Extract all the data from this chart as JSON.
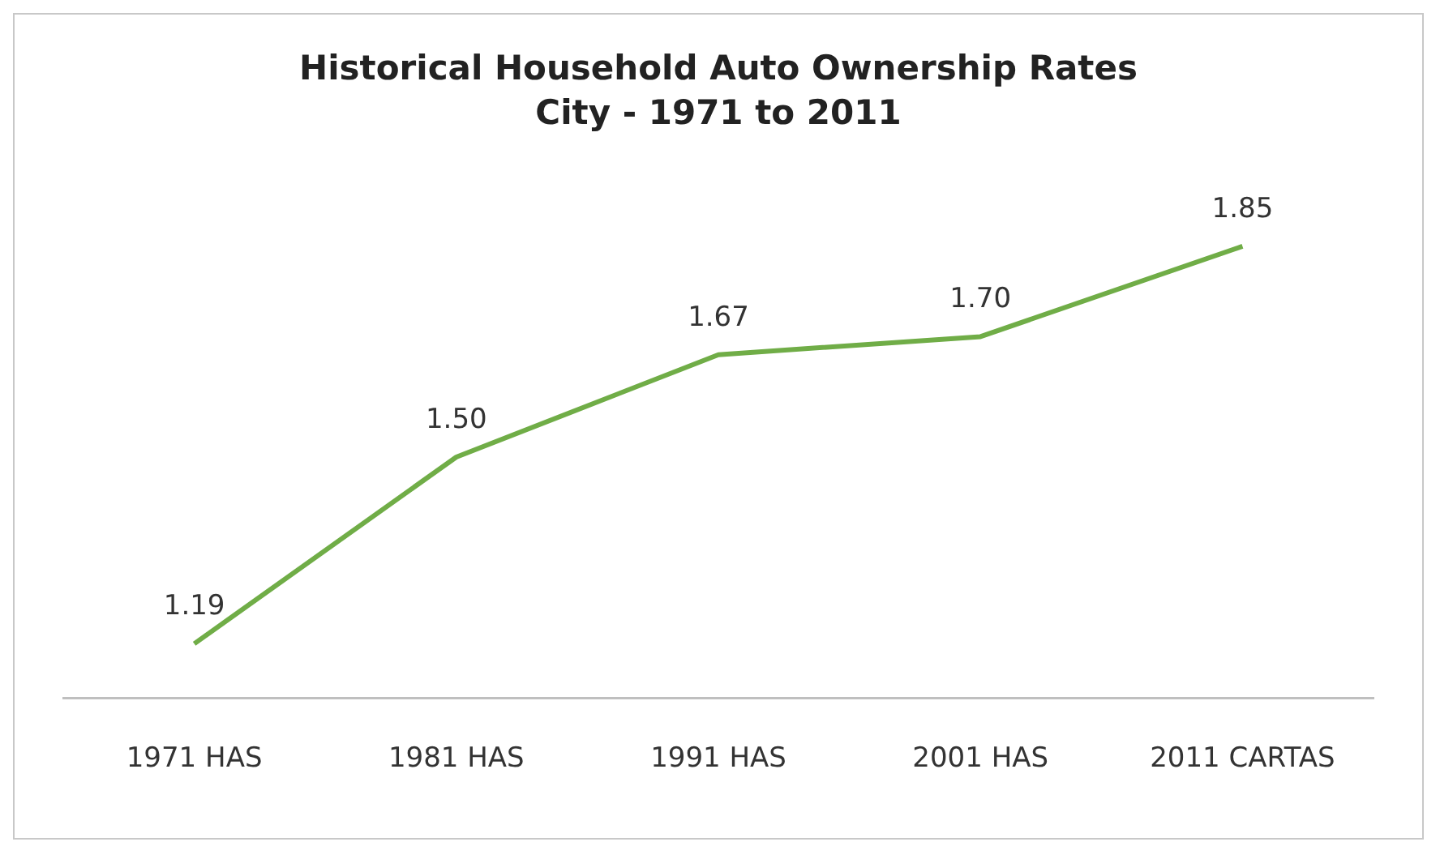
{
  "chart_data": {
    "type": "line",
    "title": "Historical Household Auto Ownership Rates",
    "subtitle": "City - 1971 to 2011",
    "categories": [
      "1971 HAS",
      "1981 HAS",
      "1991 HAS",
      "2001 HAS",
      "2011 CARTAS"
    ],
    "series": [
      {
        "color": "#70ad47",
        "values": [
          1.19,
          1.5,
          1.67,
          1.7,
          1.85
        ],
        "value_labels": [
          "1.19",
          "1.50",
          "1.67",
          "1.70",
          "1.85"
        ]
      }
    ],
    "grid": false,
    "legend": false,
    "marker": "none",
    "line_style": "solid"
  }
}
